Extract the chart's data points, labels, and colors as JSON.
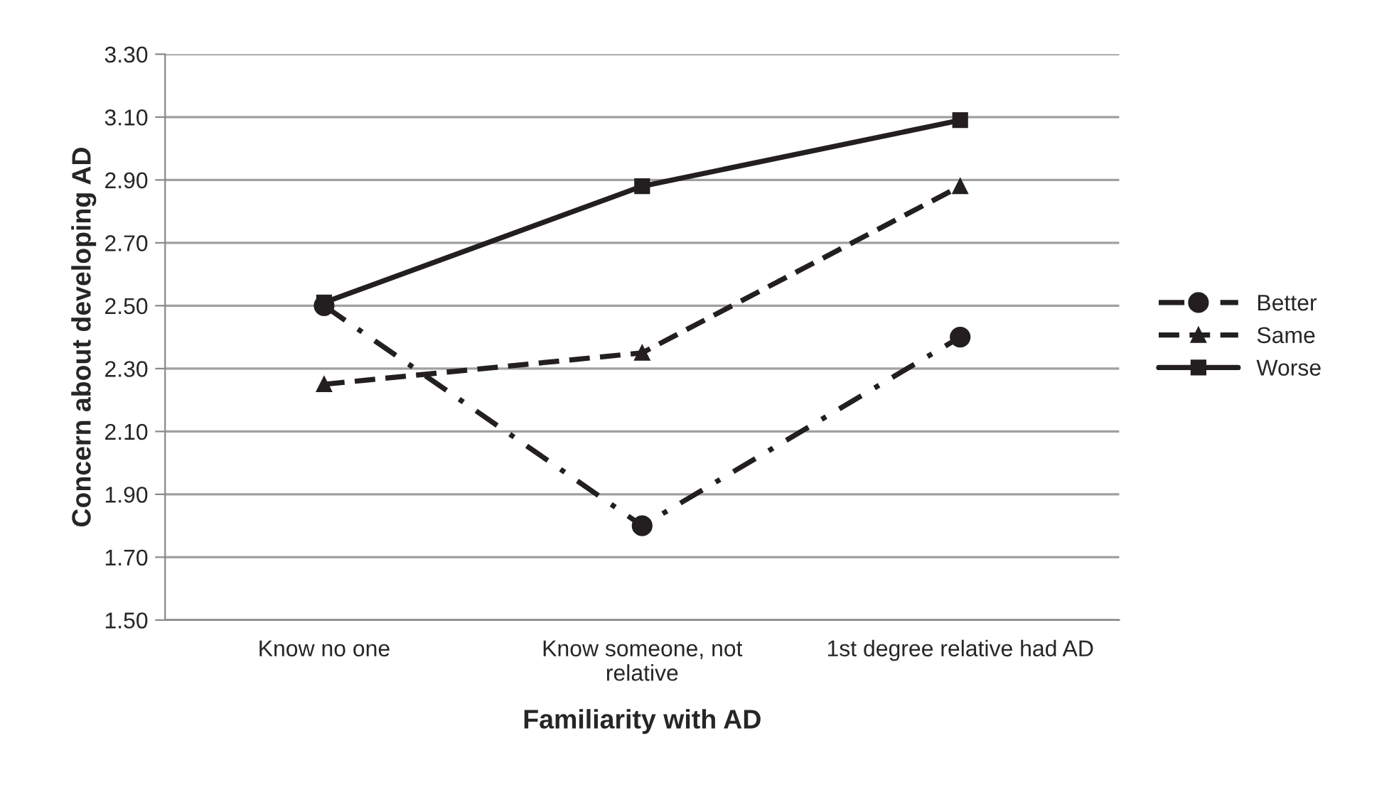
{
  "chart_data": {
    "type": "line",
    "xlabel": "Familiarity with AD",
    "ylabel": "Concern about developing AD",
    "categories": [
      "Know no one",
      "Know someone, not\nrelative",
      "1st degree relative had AD"
    ],
    "series": [
      {
        "name": "Better",
        "color": "#231f20",
        "values": [
          2.5,
          1.8,
          2.4
        ],
        "marker": "circle",
        "line_style": "dashdot"
      },
      {
        "name": "Same",
        "color": "#231f20",
        "values": [
          2.25,
          2.35,
          2.88
        ],
        "marker": "triangle",
        "line_style": "dashed"
      },
      {
        "name": "Worse",
        "color": "#231f20",
        "values": [
          2.51,
          2.88,
          3.09
        ],
        "marker": "square",
        "line_style": "solid"
      }
    ],
    "ylim": [
      1.5,
      3.3
    ],
    "yticks": [
      {
        "value": 1.5,
        "label": "1.50"
      },
      {
        "value": 1.7,
        "label": "1.70"
      },
      {
        "value": 1.9,
        "label": "1.90"
      },
      {
        "value": 2.1,
        "label": "2.10"
      },
      {
        "value": 2.3,
        "label": "2.30"
      },
      {
        "value": 2.5,
        "label": "2.50"
      },
      {
        "value": 2.7,
        "label": "2.70"
      },
      {
        "value": 2.9,
        "label": "2.90"
      },
      {
        "value": 3.1,
        "label": "3.10"
      },
      {
        "value": 3.3,
        "label": "3.30"
      }
    ],
    "grid": "y",
    "legend": "right"
  }
}
